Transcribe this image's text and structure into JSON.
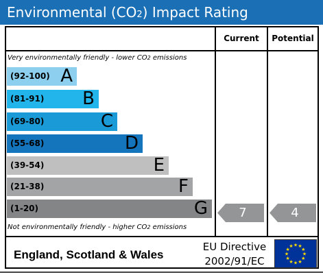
{
  "title": {
    "text_before": "Environmental (CO",
    "subscript": "2",
    "text_after": ") Impact Rating"
  },
  "columns": {
    "current": "Current",
    "potential": "Potential"
  },
  "notes": {
    "top_before": "Very environmentally friendly - lower CO",
    "top_sub": "2",
    "top_after": " emissions",
    "bottom_before": "Not environmentally friendly - higher CO",
    "bottom_sub": "2",
    "bottom_after": " emissions"
  },
  "bands": [
    {
      "range": "(92-100)",
      "letter": "A",
      "color": "#8ccfee"
    },
    {
      "range": "(81-91)",
      "letter": "B",
      "color": "#22b5ec"
    },
    {
      "range": "(69-80)",
      "letter": "C",
      "color": "#1a9ad7"
    },
    {
      "range": "(55-68)",
      "letter": "D",
      "color": "#1475bd"
    },
    {
      "range": "(39-54)",
      "letter": "E",
      "color": "#bfbfc0"
    },
    {
      "range": "(21-38)",
      "letter": "F",
      "color": "#a3a4a6"
    },
    {
      "range": "(1-20)",
      "letter": "G",
      "color": "#848587"
    }
  ],
  "ratings": {
    "current": {
      "value": "7",
      "band": "G",
      "color": "#939597"
    },
    "potential": {
      "value": "4",
      "band": "G",
      "color": "#939597"
    }
  },
  "footer": {
    "country": "England, Scotland & Wales",
    "directive_line1": "EU Directive",
    "directive_line2": "2002/91/EC"
  },
  "colors": {
    "title_bar": "#1a6fb5",
    "eu_flag_blue": "#003399",
    "eu_flag_stars": "#ffdd00"
  }
}
